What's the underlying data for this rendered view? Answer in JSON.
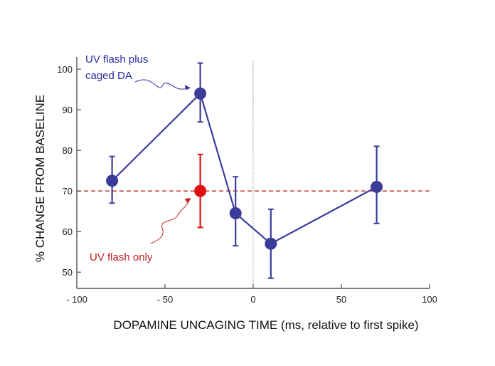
{
  "chart_data": {
    "type": "scatter",
    "xlabel": "DOPAMINE UNCAGING TIME (ms, relative to first spike)",
    "ylabel": "% CHANGE FROM BASELINE",
    "xlim": [
      -100,
      100
    ],
    "ylim": [
      46,
      103
    ],
    "x_ticks": [
      {
        "value": -100,
        "label": "- 100"
      },
      {
        "value": -50,
        "label": "- 50"
      },
      {
        "value": 0,
        "label": "0"
      },
      {
        "value": 50,
        "label": "50"
      },
      {
        "value": 100,
        "label": "100"
      }
    ],
    "y_ticks": [
      50,
      60,
      70,
      80,
      90,
      100
    ],
    "zero_line_x": 0,
    "series": [
      {
        "name": "UV flash plus caged DA",
        "color": "#3b3b9a",
        "connected": true,
        "points": [
          {
            "x": -80,
            "y": 72.5,
            "err_low": 67,
            "err_high": 78.5
          },
          {
            "x": -30,
            "y": 94,
            "err_low": 87,
            "err_high": 101.5
          },
          {
            "x": -10,
            "y": 64.5,
            "err_low": 56.5,
            "err_high": 73.5
          },
          {
            "x": 10,
            "y": 57,
            "err_low": 48.5,
            "err_high": 65.5
          },
          {
            "x": 70,
            "y": 71,
            "err_low": 62,
            "err_high": 81
          }
        ]
      },
      {
        "name": "UV flash only",
        "color": "#e01010",
        "connected": false,
        "points": [
          {
            "x": -30,
            "y": 70,
            "err_low": 61,
            "err_high": 79
          }
        ],
        "reference_line": {
          "y": 70,
          "style": "dashed",
          "color": "#c02020"
        }
      }
    ],
    "annotations": [
      {
        "text": [
          "UV flash plus",
          "caged DA"
        ],
        "color": "#2a2aa0",
        "points_to_series": 0
      },
      {
        "text": [
          "UV flash only"
        ],
        "color": "#c02020",
        "points_to_series": 1
      }
    ]
  }
}
